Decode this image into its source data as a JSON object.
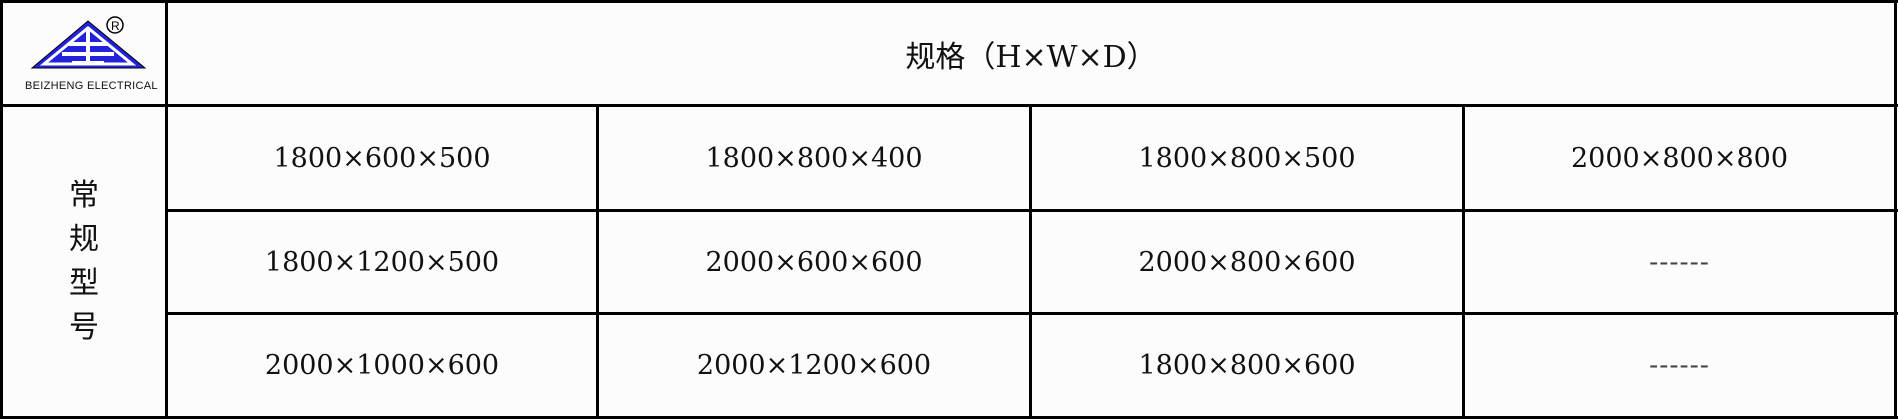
{
  "logo": {
    "text": "BEIZHENG ELECTRICAL",
    "registered_mark": "®",
    "brand_color": "#2222cc"
  },
  "header": {
    "title": "规格（H×W×D）"
  },
  "side_label": [
    "常",
    "规",
    "型",
    "号"
  ],
  "rows": [
    [
      "1800×600×500",
      "1800×800×400",
      "1800×800×500",
      "2000×800×800"
    ],
    [
      "1800×1200×500",
      "2000×600×600",
      "2000×800×600",
      "------"
    ],
    [
      "2000×1000×600",
      "2000×1200×600",
      "1800×800×600",
      "------"
    ]
  ]
}
